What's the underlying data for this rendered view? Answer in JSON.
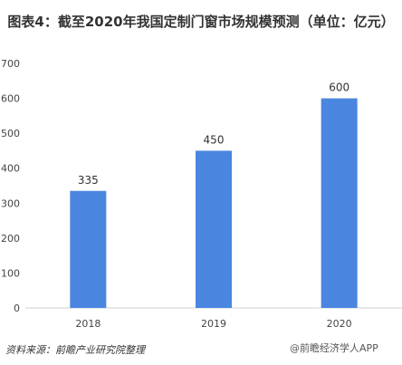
{
  "chart_data": {
    "type": "bar",
    "title": "图表4：截至2020年我国定制门窗市场规模预测（单位：亿元）",
    "categories": [
      "2018",
      "2019",
      "2020"
    ],
    "values": [
      335,
      450,
      600
    ],
    "data_labels": [
      "335",
      "450",
      "600"
    ],
    "yticks": [
      "0",
      "100",
      "200",
      "300",
      "400",
      "500",
      "600",
      "700"
    ],
    "ylim": [
      0,
      700
    ],
    "xlabel": "",
    "ylabel": "",
    "grid": false,
    "bar_color": "#4a86e0"
  },
  "footer": {
    "source": "资料来源：前瞻产业研究院整理",
    "watermark": "@前瞻经济学人APP"
  }
}
